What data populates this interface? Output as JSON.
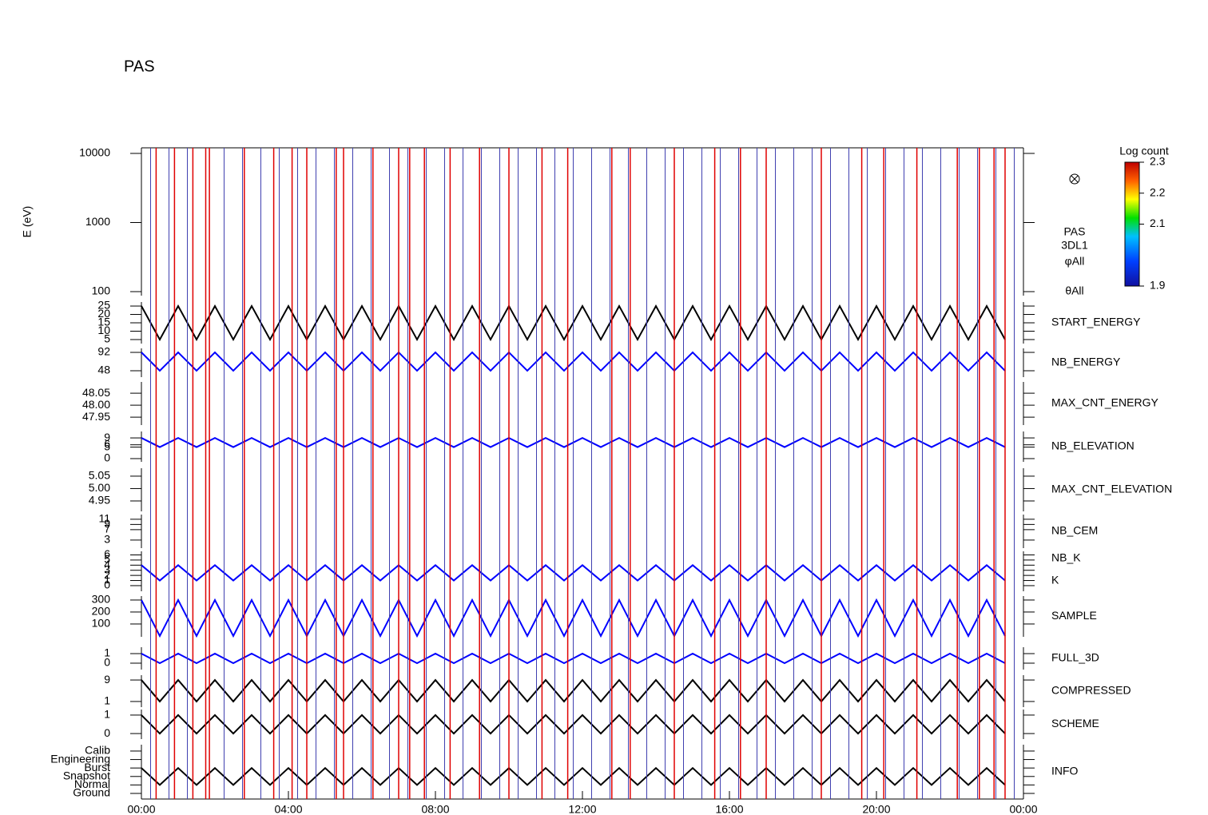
{
  "chart_data": {
    "type": "line",
    "title": "PAS",
    "xlim": [
      0,
      24
    ],
    "xticks": [
      {
        "value": 0,
        "label": "00:00"
      },
      {
        "value": 4,
        "label": "04:00"
      },
      {
        "value": 8,
        "label": "08:00"
      },
      {
        "value": 12,
        "label": "12:00"
      },
      {
        "value": 16,
        "label": "16:00"
      },
      {
        "value": 20,
        "label": "20:00"
      },
      {
        "value": 24,
        "label": "00:00"
      }
    ],
    "x": [
      0,
      0.5,
      1,
      1.5,
      2,
      2.5,
      3,
      3.5,
      4,
      4.5,
      5,
      5.5,
      6,
      6.5,
      7,
      7.5,
      8,
      8.5,
      9,
      9.5,
      10,
      10.5,
      11,
      11.5,
      12,
      12.5,
      13,
      13.5,
      14,
      14.5,
      15,
      15.5,
      16,
      16.5,
      17,
      17.5,
      18,
      18.5,
      19,
      19.5,
      20,
      20.5,
      21,
      21.5,
      22,
      22.5,
      23,
      23.5
    ],
    "markers": {
      "red_color": "#e00000",
      "blue_color": "#4040b0",
      "red": [
        0.4,
        0.9,
        1.4,
        1.75,
        1.85,
        2.8,
        3.6,
        4.1,
        4.5,
        5.3,
        5.5,
        6.3,
        7.0,
        7.3,
        7.7,
        8.4,
        9.2,
        10.0,
        10.9,
        11.6,
        12.8,
        13.3,
        14.5,
        15.6,
        16.3,
        17.0,
        18.5,
        19.6,
        20.2,
        21.1,
        22.2,
        22.8,
        23.2,
        23.5
      ],
      "blue": [
        0.25,
        0.75,
        1.25,
        1.75,
        2.25,
        2.75,
        3.25,
        3.75,
        4.25,
        4.75,
        5.25,
        5.75,
        6.25,
        6.75,
        7.25,
        7.75,
        8.25,
        8.75,
        9.25,
        9.75,
        10.25,
        10.75,
        11.25,
        11.75,
        12.25,
        12.75,
        13.25,
        13.75,
        14.25,
        14.75,
        15.25,
        15.75,
        16.25,
        16.75,
        17.25,
        17.75,
        18.25,
        18.75,
        19.25,
        19.75,
        20.25,
        20.75,
        21.25,
        21.75,
        22.25,
        22.75,
        23.25,
        23.75
      ]
    },
    "side_labels": [
      "PAS",
      "3DL1",
      "φAll",
      "θAll"
    ],
    "colorbar": {
      "title": "Log count",
      "lim": [
        1.9,
        2.3
      ],
      "ticks": [
        1.9,
        2.1,
        2.2,
        2.3
      ]
    },
    "panels": [
      {
        "ylabel": "E (eV)",
        "log": true,
        "ylim": [
          87.5,
          12050
        ],
        "yticks": [
          100,
          1000,
          10000
        ],
        "series": []
      },
      {
        "label": "START_ENERGY",
        "label_color": "#000000",
        "ylim": [
          2.6,
          27.4
        ],
        "yticks": [
          5,
          10,
          15,
          20,
          25
        ],
        "series": [
          {
            "color": "#000000",
            "values": [
              25,
              5,
              25,
              5,
              25,
              5,
              25,
              5,
              25,
              5,
              25,
              5,
              25,
              5,
              25,
              5,
              25,
              5,
              25,
              5,
              25,
              5,
              25,
              5,
              25,
              5,
              25,
              5,
              25,
              5,
              25,
              5,
              25,
              5,
              25,
              5,
              25,
              5,
              25,
              5,
              25,
              5,
              25,
              5,
              25,
              5,
              25,
              5
            ]
          }
        ]
      },
      {
        "label": "NB_ENERGY",
        "label_color": "#2020c0",
        "ylim": [
          32.7,
          101.6
        ],
        "yticks": [
          48,
          92
        ],
        "series": [
          {
            "color": "#0000ff",
            "values": [
              92,
              48,
              92,
              48,
              92,
              48,
              92,
              48,
              92,
              48,
              92,
              48,
              92,
              48,
              92,
              48,
              92,
              48,
              92,
              48,
              92,
              48,
              92,
              48,
              92,
              48,
              92,
              48,
              92,
              48,
              92,
              48,
              92,
              48,
              92,
              48,
              92,
              48,
              92,
              48,
              92,
              48,
              92,
              48,
              92,
              48,
              92,
              48
            ]
          }
        ]
      },
      {
        "label": "MAX_CNT_ENERGY",
        "label_color": "#000000",
        "ylim": [
          47.917,
          48.097
        ],
        "yticks": [
          {
            "value": 47.95,
            "label": "47.95"
          },
          {
            "value": 48,
            "label": "48.00"
          },
          {
            "value": 48.05,
            "label": "48.05"
          }
        ],
        "series": []
      },
      {
        "label": "NB_ELEVATION",
        "label_color": "#2020c0",
        "ylim": [
          -1.4,
          11.8
        ],
        "yticks": [
          0,
          5,
          6,
          9
        ],
        "series": [
          {
            "color": "#0000ff",
            "values": [
              9,
              5,
              9,
              5,
              9,
              5,
              9,
              5,
              9,
              5,
              9,
              5,
              9,
              5,
              9,
              5,
              9,
              5,
              9,
              5,
              9,
              5,
              9,
              5,
              9,
              5,
              9,
              5,
              9,
              5,
              9,
              5,
              9,
              5,
              9,
              5,
              9,
              5,
              9,
              5,
              9,
              5,
              9,
              5,
              9,
              5,
              9,
              5
            ]
          }
        ]
      },
      {
        "label": "MAX_CNT_ELEVATION",
        "label_color": "#000000",
        "ylim": [
          4.908,
          5.082
        ],
        "yticks": [
          {
            "value": 4.95,
            "label": "4.95"
          },
          {
            "value": 5,
            "label": "5.00"
          },
          {
            "value": 5.05,
            "label": "5.05"
          }
        ],
        "series": []
      },
      {
        "label": "NB_CEM",
        "label_color": "#2020c0",
        "ylim": [
          -0.1,
          12.8
        ],
        "yticks": [
          3,
          7,
          9,
          11
        ],
        "series": []
      },
      {
        "ylim": [
          -1.1,
          6.7
        ],
        "yticks": [
          0,
          1,
          2,
          3,
          4,
          5,
          6
        ],
        "series": [
          {
            "name": "NB_K",
            "color": "#e00000",
            "values": []
          },
          {
            "name": "K",
            "color": "#0000ff",
            "values": [
              4,
              1,
              4,
              1,
              4,
              1,
              4,
              1,
              4,
              1,
              4,
              1,
              4,
              1,
              4,
              1,
              4,
              1,
              4,
              1,
              4,
              1,
              4,
              1,
              4,
              1,
              4,
              1,
              4,
              1,
              4,
              1,
              4,
              1,
              4,
              1,
              4,
              1,
              4,
              1,
              4,
              1,
              4,
              1,
              4,
              1,
              4,
              1
            ]
          }
        ]
      },
      {
        "label": "SAMPLE",
        "label_color": "#2020c0",
        "ylim": [
          -7,
          333
        ],
        "yticks": [
          100,
          200,
          300
        ],
        "series": [
          {
            "color": "#0000ff",
            "values": [
              300,
              0,
              300,
              0,
              300,
              0,
              300,
              0,
              300,
              0,
              300,
              0,
              300,
              0,
              300,
              0,
              300,
              0,
              300,
              0,
              300,
              0,
              300,
              0,
              300,
              0,
              300,
              0,
              300,
              0,
              300,
              0,
              300,
              0,
              300,
              0,
              300,
              0,
              300,
              0,
              300,
              0,
              300,
              0,
              300,
              0,
              300,
              0
            ]
          }
        ]
      },
      {
        "label": "FULL_3D",
        "label_color": "#2020c0",
        "ylim": [
          -0.67,
          1.67
        ],
        "yticks": [
          0,
          1
        ],
        "series": [
          {
            "color": "#0000ff",
            "values": [
              1,
              0,
              1,
              0,
              1,
              0,
              1,
              0,
              1,
              0,
              1,
              0,
              1,
              0,
              1,
              0,
              1,
              0,
              1,
              0,
              1,
              0,
              1,
              0,
              1,
              0,
              1,
              0,
              1,
              0,
              1,
              0,
              1,
              0,
              1,
              0,
              1,
              0,
              1,
              0,
              1,
              0,
              1,
              0,
              1,
              0,
              1,
              0
            ]
          }
        ]
      },
      {
        "label": "COMPRESSED",
        "label_color": "#000000",
        "ylim": [
          -1.1,
          10.8
        ],
        "yticks": [
          1,
          9
        ],
        "series": [
          {
            "color": "#000000",
            "values": [
              9,
              1,
              9,
              1,
              9,
              1,
              9,
              1,
              9,
              1,
              9,
              1,
              9,
              1,
              9,
              1,
              9,
              1,
              9,
              1,
              9,
              1,
              9,
              1,
              9,
              1,
              9,
              1,
              9,
              1,
              9,
              1,
              9,
              1,
              9,
              1,
              9,
              1,
              9,
              1,
              9,
              1,
              9,
              1,
              9,
              1,
              9,
              1
            ]
          }
        ]
      },
      {
        "label": "SCHEME",
        "label_color": "#000000",
        "ylim": [
          -0.3,
          1.3
        ],
        "yticks": [
          0,
          1
        ],
        "series": [
          {
            "color": "#000000",
            "values": [
              1,
              0,
              1,
              0,
              1,
              0,
              1,
              0,
              1,
              0,
              1,
              0,
              1,
              0,
              1,
              0,
              1,
              0,
              1,
              0,
              1,
              0,
              1,
              0,
              1,
              0,
              1,
              0,
              1,
              0,
              1,
              0,
              1,
              0,
              1,
              0,
              1,
              0,
              1,
              0,
              1,
              0,
              1,
              0,
              1,
              0,
              1,
              0
            ]
          }
        ]
      },
      {
        "label": "INFO",
        "label_color": "#2020c0",
        "ylim": [
          -0.66,
          5.75
        ],
        "yticks": [
          {
            "value": 0,
            "label": "Ground"
          },
          {
            "value": 1,
            "label": "Normal"
          },
          {
            "value": 2,
            "label": "Snapshot"
          },
          {
            "value": 3,
            "label": "Burst"
          },
          {
            "value": 4,
            "label": "Engineering"
          },
          {
            "value": 5,
            "label": "Calib"
          }
        ],
        "series": [
          {
            "color": "#000000",
            "values": [
              3,
              1,
              3,
              1,
              3,
              1,
              3,
              1,
              3,
              1,
              3,
              1,
              3,
              1,
              3,
              1,
              3,
              1,
              3,
              1,
              3,
              1,
              3,
              1,
              3,
              1,
              3,
              1,
              3,
              1,
              3,
              1,
              3,
              1,
              3,
              1,
              3,
              1,
              3,
              1,
              3,
              1,
              3,
              1,
              3,
              1,
              3,
              1
            ]
          }
        ]
      }
    ]
  }
}
